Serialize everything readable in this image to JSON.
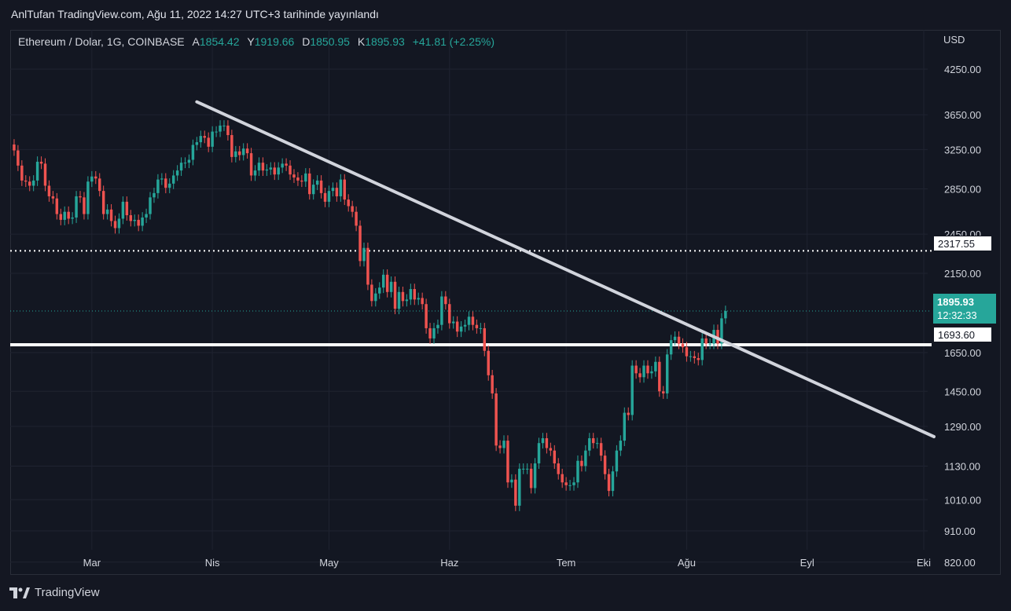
{
  "header": {
    "title": "AnlTufan TradingView.com, Ağu 11, 2022 14:27 UTC+3 tarihinde yayınlandı"
  },
  "legend": {
    "symbol": "Ethereum / Dolar, 1G, COINBASE",
    "open_label": "A",
    "open": "1854.42",
    "high_label": "Y",
    "high": "1919.66",
    "low_label": "D",
    "low": "1850.95",
    "close_label": "K",
    "close": "1895.93",
    "change": "+41.81 (+2.25%)"
  },
  "currency": "USD",
  "price_tags": {
    "resistance": "2317.55",
    "last_price": "1895.93",
    "countdown": "12:32:33",
    "support": "1693.60"
  },
  "footer": {
    "brand": "TradingView"
  },
  "colors": {
    "up": "#26a69a",
    "down": "#ef5350",
    "background": "#131722",
    "grid": "#1f2330",
    "trendline": "#d1d4dc"
  },
  "chart_data": {
    "type": "candlestick",
    "y_ticks": [
      4250,
      3650,
      3250,
      2850,
      2450,
      2150,
      1650,
      1450,
      1290,
      1130,
      1010,
      910,
      820
    ],
    "y_tick_labels": [
      "4250.00",
      "3650.00",
      "3250.00",
      "2850.00",
      "2450.00",
      "2150.00",
      "1650.00",
      "1450.00",
      "1290.00",
      "1130.00",
      "1010.00",
      "910.00",
      "820.00"
    ],
    "y_scale": "log",
    "x_ticks": [
      "2022-03-01",
      "2022-04-01",
      "2022-05-01",
      "2022-06-01",
      "2022-07-01",
      "2022-08-01",
      "2022-09-01",
      "2022-10-01"
    ],
    "x_tick_labels": [
      "Mar",
      "Nis",
      "May",
      "Haz",
      "Tem",
      "Ağu",
      "Eyl",
      "Eki"
    ],
    "x_range": [
      "2022-02-08",
      "2022-10-02"
    ],
    "horizontal_lines": [
      {
        "price": 2317.55,
        "style": "dotted"
      },
      {
        "price": 1693.6,
        "style": "solid"
      }
    ],
    "trendline": {
      "from": {
        "date": "2022-03-28",
        "price": 3810
      },
      "to": {
        "date": "2022-10-04",
        "price": 1175
      }
    },
    "closes": [
      {
        "date": "2022-02-09",
        "close": 3240
      },
      {
        "date": "2022-02-10",
        "close": 3080
      },
      {
        "date": "2022-02-11",
        "close": 2930
      },
      {
        "date": "2022-02-12",
        "close": 2920
      },
      {
        "date": "2022-02-13",
        "close": 2880
      },
      {
        "date": "2022-02-14",
        "close": 2930
      },
      {
        "date": "2022-02-15",
        "close": 3120
      },
      {
        "date": "2022-02-16",
        "close": 3100
      },
      {
        "date": "2022-02-17",
        "close": 2880
      },
      {
        "date": "2022-02-18",
        "close": 2780
      },
      {
        "date": "2022-02-19",
        "close": 2760
      },
      {
        "date": "2022-02-20",
        "close": 2620
      },
      {
        "date": "2022-02-21",
        "close": 2570
      },
      {
        "date": "2022-02-22",
        "close": 2640
      },
      {
        "date": "2022-02-23",
        "close": 2580
      },
      {
        "date": "2022-02-24",
        "close": 2590
      },
      {
        "date": "2022-02-25",
        "close": 2780
      },
      {
        "date": "2022-02-26",
        "close": 2770
      },
      {
        "date": "2022-02-27",
        "close": 2620
      },
      {
        "date": "2022-02-28",
        "close": 2920
      },
      {
        "date": "2022-03-01",
        "close": 2970
      },
      {
        "date": "2022-03-02",
        "close": 2950
      },
      {
        "date": "2022-03-03",
        "close": 2830
      },
      {
        "date": "2022-03-04",
        "close": 2620
      },
      {
        "date": "2022-03-05",
        "close": 2660
      },
      {
        "date": "2022-03-06",
        "close": 2560
      },
      {
        "date": "2022-03-07",
        "close": 2500
      },
      {
        "date": "2022-03-08",
        "close": 2580
      },
      {
        "date": "2022-03-09",
        "close": 2730
      },
      {
        "date": "2022-03-10",
        "close": 2610
      },
      {
        "date": "2022-03-11",
        "close": 2560
      },
      {
        "date": "2022-03-12",
        "close": 2570
      },
      {
        "date": "2022-03-13",
        "close": 2520
      },
      {
        "date": "2022-03-14",
        "close": 2590
      },
      {
        "date": "2022-03-15",
        "close": 2620
      },
      {
        "date": "2022-03-16",
        "close": 2770
      },
      {
        "date": "2022-03-17",
        "close": 2810
      },
      {
        "date": "2022-03-18",
        "close": 2940
      },
      {
        "date": "2022-03-19",
        "close": 2950
      },
      {
        "date": "2022-03-20",
        "close": 2860
      },
      {
        "date": "2022-03-21",
        "close": 2900
      },
      {
        "date": "2022-03-22",
        "close": 2980
      },
      {
        "date": "2022-03-23",
        "close": 3030
      },
      {
        "date": "2022-03-24",
        "close": 3110
      },
      {
        "date": "2022-03-25",
        "close": 3110
      },
      {
        "date": "2022-03-26",
        "close": 3140
      },
      {
        "date": "2022-03-27",
        "close": 3300
      },
      {
        "date": "2022-03-28",
        "close": 3330
      },
      {
        "date": "2022-03-29",
        "close": 3400
      },
      {
        "date": "2022-03-30",
        "close": 3380
      },
      {
        "date": "2022-03-31",
        "close": 3280
      },
      {
        "date": "2022-04-01",
        "close": 3450
      },
      {
        "date": "2022-04-02",
        "close": 3450
      },
      {
        "date": "2022-04-03",
        "close": 3520
      },
      {
        "date": "2022-04-04",
        "close": 3520
      },
      {
        "date": "2022-04-05",
        "close": 3410
      },
      {
        "date": "2022-04-06",
        "close": 3170
      },
      {
        "date": "2022-04-07",
        "close": 3230
      },
      {
        "date": "2022-04-08",
        "close": 3190
      },
      {
        "date": "2022-04-09",
        "close": 3260
      },
      {
        "date": "2022-04-10",
        "close": 3210
      },
      {
        "date": "2022-04-11",
        "close": 2980
      },
      {
        "date": "2022-04-12",
        "close": 3030
      },
      {
        "date": "2022-04-13",
        "close": 3110
      },
      {
        "date": "2022-04-14",
        "close": 3030
      },
      {
        "date": "2022-04-15",
        "close": 3040
      },
      {
        "date": "2022-04-16",
        "close": 3060
      },
      {
        "date": "2022-04-17",
        "close": 2990
      },
      {
        "date": "2022-04-18",
        "close": 3060
      },
      {
        "date": "2022-04-19",
        "close": 3100
      },
      {
        "date": "2022-04-20",
        "close": 3080
      },
      {
        "date": "2022-04-21",
        "close": 2990
      },
      {
        "date": "2022-04-22",
        "close": 2960
      },
      {
        "date": "2022-04-23",
        "close": 2930
      },
      {
        "date": "2022-04-24",
        "close": 2920
      },
      {
        "date": "2022-04-25",
        "close": 3000
      },
      {
        "date": "2022-04-26",
        "close": 2800
      },
      {
        "date": "2022-04-27",
        "close": 2890
      },
      {
        "date": "2022-04-28",
        "close": 2930
      },
      {
        "date": "2022-04-29",
        "close": 2810
      },
      {
        "date": "2022-04-30",
        "close": 2730
      },
      {
        "date": "2022-05-01",
        "close": 2830
      },
      {
        "date": "2022-05-02",
        "close": 2860
      },
      {
        "date": "2022-05-03",
        "close": 2780
      },
      {
        "date": "2022-05-04",
        "close": 2940
      },
      {
        "date": "2022-05-05",
        "close": 2750
      },
      {
        "date": "2022-05-06",
        "close": 2690
      },
      {
        "date": "2022-05-07",
        "close": 2640
      },
      {
        "date": "2022-05-08",
        "close": 2520
      },
      {
        "date": "2022-05-09",
        "close": 2240
      },
      {
        "date": "2022-05-10",
        "close": 2340
      },
      {
        "date": "2022-05-11",
        "close": 2070
      },
      {
        "date": "2022-05-12",
        "close": 1960
      },
      {
        "date": "2022-05-13",
        "close": 2010
      },
      {
        "date": "2022-05-14",
        "close": 2050
      },
      {
        "date": "2022-05-15",
        "close": 2140
      },
      {
        "date": "2022-05-16",
        "close": 2020
      },
      {
        "date": "2022-05-17",
        "close": 2090
      },
      {
        "date": "2022-05-18",
        "close": 1910
      },
      {
        "date": "2022-05-19",
        "close": 2020
      },
      {
        "date": "2022-05-20",
        "close": 1960
      },
      {
        "date": "2022-05-21",
        "close": 1970
      },
      {
        "date": "2022-05-22",
        "close": 2040
      },
      {
        "date": "2022-05-23",
        "close": 1970
      },
      {
        "date": "2022-05-24",
        "close": 1980
      },
      {
        "date": "2022-05-25",
        "close": 1940
      },
      {
        "date": "2022-05-26",
        "close": 1790
      },
      {
        "date": "2022-05-27",
        "close": 1730
      },
      {
        "date": "2022-05-28",
        "close": 1790
      },
      {
        "date": "2022-05-29",
        "close": 1810
      },
      {
        "date": "2022-05-30",
        "close": 1990
      },
      {
        "date": "2022-05-31",
        "close": 1940
      },
      {
        "date": "2022-06-01",
        "close": 1820
      },
      {
        "date": "2022-06-02",
        "close": 1830
      },
      {
        "date": "2022-06-03",
        "close": 1770
      },
      {
        "date": "2022-06-04",
        "close": 1800
      },
      {
        "date": "2022-06-05",
        "close": 1810
      },
      {
        "date": "2022-06-06",
        "close": 1860
      },
      {
        "date": "2022-06-07",
        "close": 1810
      },
      {
        "date": "2022-06-08",
        "close": 1790
      },
      {
        "date": "2022-06-09",
        "close": 1790
      },
      {
        "date": "2022-06-10",
        "close": 1660
      },
      {
        "date": "2022-06-11",
        "close": 1530
      },
      {
        "date": "2022-06-12",
        "close": 1440
      },
      {
        "date": "2022-06-13",
        "close": 1210
      },
      {
        "date": "2022-06-14",
        "close": 1200
      },
      {
        "date": "2022-06-15",
        "close": 1230
      },
      {
        "date": "2022-06-16",
        "close": 1070
      },
      {
        "date": "2022-06-17",
        "close": 1080
      },
      {
        "date": "2022-06-18",
        "close": 990
      },
      {
        "date": "2022-06-19",
        "close": 1120
      },
      {
        "date": "2022-06-20",
        "close": 1120
      },
      {
        "date": "2022-06-21",
        "close": 1120
      },
      {
        "date": "2022-06-22",
        "close": 1050
      },
      {
        "date": "2022-06-23",
        "close": 1140
      },
      {
        "date": "2022-06-24",
        "close": 1220
      },
      {
        "date": "2022-06-25",
        "close": 1240
      },
      {
        "date": "2022-06-26",
        "close": 1200
      },
      {
        "date": "2022-06-27",
        "close": 1190
      },
      {
        "date": "2022-06-28",
        "close": 1140
      },
      {
        "date": "2022-06-29",
        "close": 1100
      },
      {
        "date": "2022-06-30",
        "close": 1070
      },
      {
        "date": "2022-07-01",
        "close": 1060
      },
      {
        "date": "2022-07-02",
        "close": 1060
      },
      {
        "date": "2022-07-03",
        "close": 1070
      },
      {
        "date": "2022-07-04",
        "close": 1150
      },
      {
        "date": "2022-07-05",
        "close": 1130
      },
      {
        "date": "2022-07-06",
        "close": 1190
      },
      {
        "date": "2022-07-07",
        "close": 1240
      },
      {
        "date": "2022-07-08",
        "close": 1220
      },
      {
        "date": "2022-07-09",
        "close": 1220
      },
      {
        "date": "2022-07-10",
        "close": 1170
      },
      {
        "date": "2022-07-11",
        "close": 1100
      },
      {
        "date": "2022-07-12",
        "close": 1040
      },
      {
        "date": "2022-07-13",
        "close": 1110
      },
      {
        "date": "2022-07-14",
        "close": 1190
      },
      {
        "date": "2022-07-15",
        "close": 1230
      },
      {
        "date": "2022-07-16",
        "close": 1350
      },
      {
        "date": "2022-07-17",
        "close": 1340
      },
      {
        "date": "2022-07-18",
        "close": 1580
      },
      {
        "date": "2022-07-19",
        "close": 1540
      },
      {
        "date": "2022-07-20",
        "close": 1520
      },
      {
        "date": "2022-07-21",
        "close": 1580
      },
      {
        "date": "2022-07-22",
        "close": 1540
      },
      {
        "date": "2022-07-23",
        "close": 1550
      },
      {
        "date": "2022-07-24",
        "close": 1600
      },
      {
        "date": "2022-07-25",
        "close": 1450
      },
      {
        "date": "2022-07-26",
        "close": 1440
      },
      {
        "date": "2022-07-27",
        "close": 1640
      },
      {
        "date": "2022-07-28",
        "close": 1720
      },
      {
        "date": "2022-07-29",
        "close": 1740
      },
      {
        "date": "2022-07-30",
        "close": 1700
      },
      {
        "date": "2022-07-31",
        "close": 1680
      },
      {
        "date": "2022-08-01",
        "close": 1630
      },
      {
        "date": "2022-08-02",
        "close": 1630
      },
      {
        "date": "2022-08-03",
        "close": 1620
      },
      {
        "date": "2022-08-04",
        "close": 1610
      },
      {
        "date": "2022-08-05",
        "close": 1730
      },
      {
        "date": "2022-08-06",
        "close": 1700
      },
      {
        "date": "2022-08-07",
        "close": 1700
      },
      {
        "date": "2022-08-08",
        "close": 1780
      },
      {
        "date": "2022-08-09",
        "close": 1700
      },
      {
        "date": "2022-08-10",
        "close": 1850
      },
      {
        "date": "2022-08-11",
        "close": 1896
      }
    ]
  }
}
